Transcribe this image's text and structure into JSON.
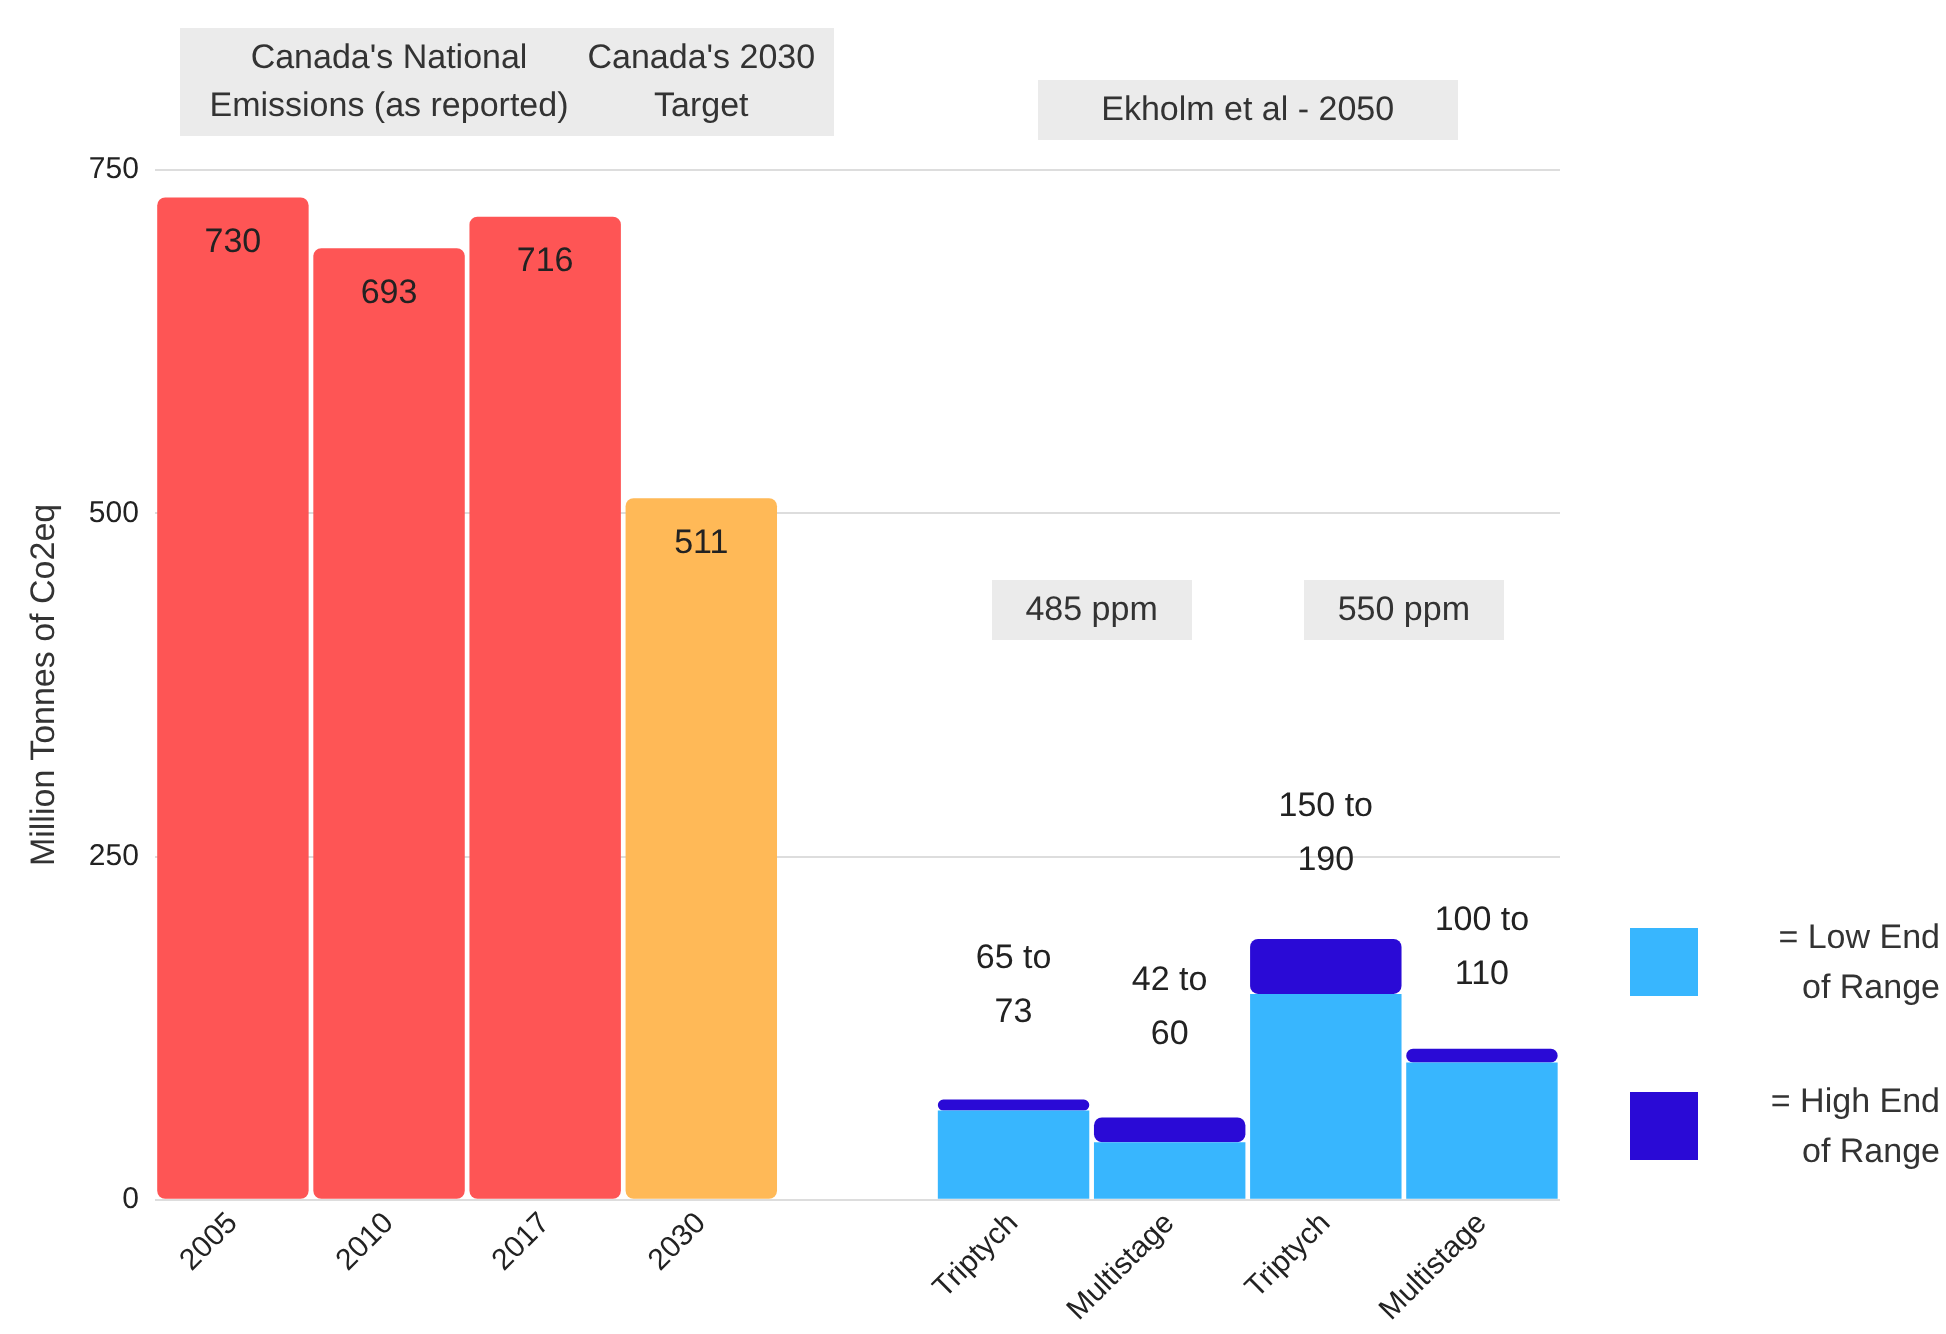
{
  "chart_data": {
    "type": "bar",
    "stacked": true,
    "ylabel": "Million Tonnes of Co2eq",
    "categories": [
      "2005",
      "2010",
      "2017",
      "2030",
      null,
      "Triptych",
      "Multistage",
      "Triptych",
      "Multistage"
    ],
    "series": [
      {
        "colors": [
          "#fe5555",
          "#fe5555",
          "#fe5555",
          "#ffb957",
          null,
          null,
          null,
          null,
          null
        ],
        "values": [
          730,
          693,
          716,
          511,
          null,
          null,
          null,
          null,
          null
        ],
        "value_labels": [
          "730",
          "693",
          "716",
          "511",
          null,
          null,
          null,
          null,
          null
        ]
      },
      {
        "name": "= Low End of Range",
        "color": "#38b6fe",
        "values": [
          null,
          null,
          null,
          null,
          null,
          65,
          42,
          150,
          100
        ]
      },
      {
        "name": "= High End of Range",
        "color": "#2a0ad6",
        "values": [
          null,
          null,
          null,
          null,
          null,
          8,
          18,
          40,
          10
        ]
      }
    ],
    "ylim": [
      0,
      750
    ],
    "yticks": [
      0,
      250,
      500,
      750
    ],
    "grid": "y",
    "legend": "right",
    "annotations": [
      "Canada's National Emissions (as reported)",
      "Canada's 2030 Target",
      "Ekholm et al - 2050",
      "485 ppm",
      "550 ppm",
      "65 to 73",
      "42 to 60",
      "150 to 190",
      "100 to 110"
    ]
  }
}
